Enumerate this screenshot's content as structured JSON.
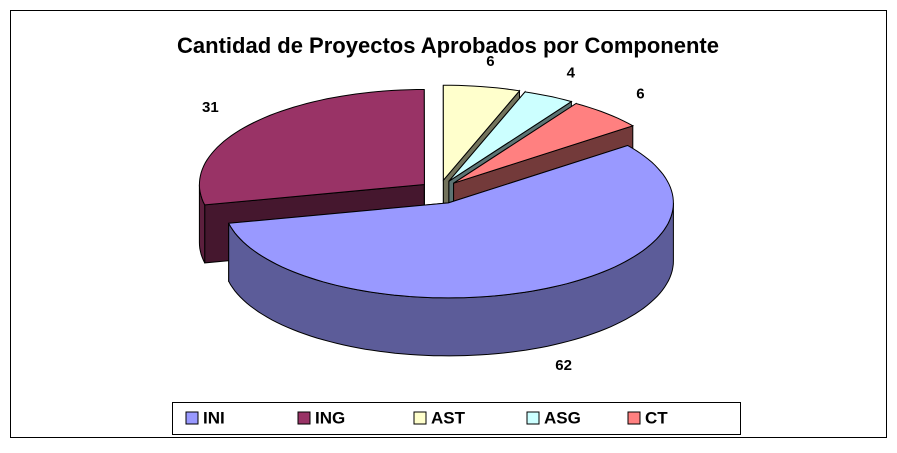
{
  "chart_data": {
    "type": "pie3d",
    "title": "Cantidad de Proyectos Aprobados por Componente",
    "categories": [
      "INI",
      "ING",
      "AST",
      "ASG",
      "CT"
    ],
    "values": [
      62,
      31,
      6,
      4,
      6
    ],
    "colors": [
      "#9999ff",
      "#993366",
      "#ffffcc",
      "#ccffff",
      "#ff8080"
    ],
    "legend": "bottom"
  }
}
